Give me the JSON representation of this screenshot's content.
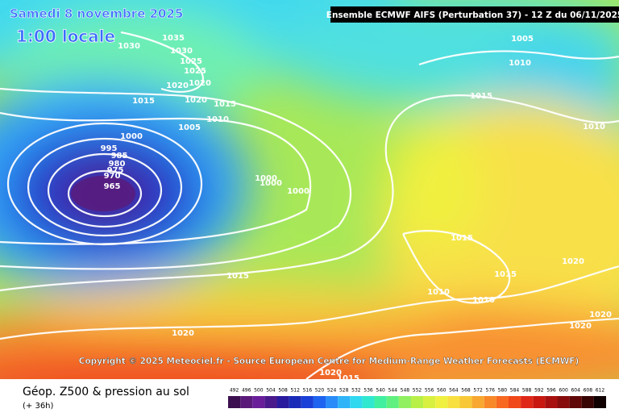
{
  "header": {
    "date": "Samedi 8 novembre 2025",
    "time": "1:00 locale",
    "model": "Ensemble ECMWF AIFS  (Perturbation 37)  -  12 Z du 06/11/2025"
  },
  "isobar_labels": [
    "1035",
    "1030",
    "1030",
    "1025",
    "1025",
    "1020",
    "1020",
    "1015",
    "1020",
    "1015",
    "1010",
    "1005",
    "1000",
    "995",
    "985",
    "980",
    "975",
    "970",
    "965",
    "1000",
    "1000",
    "1000",
    "1015",
    "1010",
    "1005",
    "1010",
    "1015",
    "1015",
    "1010",
    "1010",
    "1020",
    "1020",
    "1020",
    "1015",
    "1020",
    "1020",
    "1015"
  ],
  "copyright": "Copyright © 2025 Meteociel.fr - Source European Centre for Medium-Range Weather Forecasts (ECMWF)",
  "footer": {
    "title": "Géop. Z500 & pression au sol",
    "subtitle": "(+ 36h)"
  },
  "scale": {
    "labels": [
      492,
      496,
      500,
      504,
      508,
      512,
      516,
      520,
      524,
      528,
      532,
      536,
      540,
      544,
      548,
      552,
      556,
      560,
      564,
      568,
      572,
      576,
      580,
      584,
      588,
      592,
      596,
      600,
      604,
      608,
      612
    ],
    "colors": [
      "#3c1050",
      "#5a1a7a",
      "#6a1e9a",
      "#4a1a8c",
      "#2a1a9e",
      "#1a2ab8",
      "#1a40d8",
      "#1e64f0",
      "#2a8cf8",
      "#30b4f8",
      "#30d8f0",
      "#30e8d0",
      "#40f0a0",
      "#60f080",
      "#90f060",
      "#b8f048",
      "#d8f040",
      "#f0f040",
      "#f8e040",
      "#f8c838",
      "#f8a830",
      "#f88828",
      "#f86820",
      "#f04818",
      "#e02818",
      "#c81810",
      "#a81010",
      "#880c0c",
      "#600808",
      "#380404",
      "#100000"
    ]
  }
}
